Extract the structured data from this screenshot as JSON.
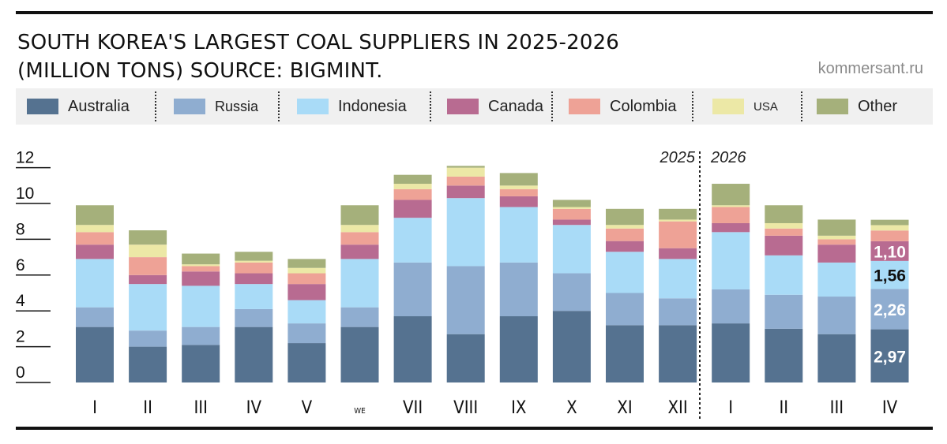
{
  "header": {
    "title_line1": "SOUTH KOREA'S LARGEST COAL SUPPLIERS IN 2025-2026",
    "title_line2": "(MILLION TONS) SOURCE: BIGMINT.",
    "source": "kommersant.ru"
  },
  "legend": [
    {
      "name": "Australia",
      "color": "#557290"
    },
    {
      "name": "Russia",
      "color": "#8fadd0"
    },
    {
      "name": "Indonesia",
      "color": "#a9dbf7"
    },
    {
      "name": "Canada",
      "color": "#b86b91"
    },
    {
      "name": "Colombia",
      "color": "#eea296"
    },
    {
      "name": "USA",
      "color": "#ece8a6"
    },
    {
      "name": "Other",
      "color": "#a5b07b"
    }
  ],
  "chart_data": {
    "type": "bar",
    "stacked": true,
    "categories": [
      "I",
      "II",
      "III",
      "IV",
      "V",
      "WE",
      "VII",
      "VIII",
      "IX",
      "X",
      "XI",
      "XII",
      "I",
      "II",
      "III",
      "IV"
    ],
    "year_labels": [
      "2025",
      "2026"
    ],
    "ylim": [
      0,
      12
    ],
    "yticks": [
      "0",
      "2",
      "4",
      "6",
      "8",
      "10",
      "12"
    ],
    "series": [
      {
        "name": "Australia",
        "values": [
          3.1,
          2.0,
          2.1,
          3.1,
          2.2,
          3.1,
          3.7,
          2.7,
          3.7,
          4.0,
          3.2,
          3.2,
          3.3,
          3.0,
          2.7,
          2.97
        ]
      },
      {
        "name": "Russia",
        "values": [
          1.1,
          0.9,
          1.0,
          1.0,
          1.1,
          1.1,
          3.0,
          3.8,
          3.0,
          2.1,
          1.8,
          1.5,
          1.9,
          1.9,
          2.1,
          2.26
        ]
      },
      {
        "name": "Indonesia",
        "values": [
          2.7,
          2.6,
          2.3,
          1.4,
          1.3,
          2.7,
          2.5,
          3.8,
          3.1,
          2.7,
          2.3,
          2.2,
          3.2,
          2.2,
          1.9,
          1.56
        ]
      },
      {
        "name": "Canada",
        "values": [
          0.8,
          0.5,
          0.8,
          0.6,
          0.9,
          0.8,
          1.0,
          0.7,
          0.6,
          0.3,
          0.6,
          0.6,
          0.5,
          1.1,
          1.0,
          1.1
        ]
      },
      {
        "name": "Colombia",
        "values": [
          0.7,
          1.0,
          0.3,
          0.6,
          0.6,
          0.7,
          0.6,
          0.5,
          0.4,
          0.6,
          0.7,
          1.5,
          0.9,
          0.4,
          0.3,
          0.6
        ]
      },
      {
        "name": "USA",
        "values": [
          0.4,
          0.7,
          0.1,
          0.1,
          0.3,
          0.4,
          0.3,
          0.5,
          0.2,
          0.1,
          0.2,
          0.1,
          0.1,
          0.3,
          0.2,
          0.3
        ]
      },
      {
        "name": "Other",
        "values": [
          1.1,
          0.8,
          0.6,
          0.5,
          0.5,
          1.1,
          0.5,
          0.1,
          0.7,
          0.4,
          0.9,
          0.6,
          1.2,
          1.0,
          0.9,
          0.3
        ]
      }
    ],
    "data_labels": [
      {
        "category_index": 15,
        "series": "Australia",
        "text": "2,97"
      },
      {
        "category_index": 15,
        "series": "Russia",
        "text": "2,26"
      },
      {
        "category_index": 15,
        "series": "Indonesia",
        "text": "1,56"
      },
      {
        "category_index": 15,
        "series": "Canada",
        "text": "1,10"
      }
    ],
    "grid": false
  }
}
